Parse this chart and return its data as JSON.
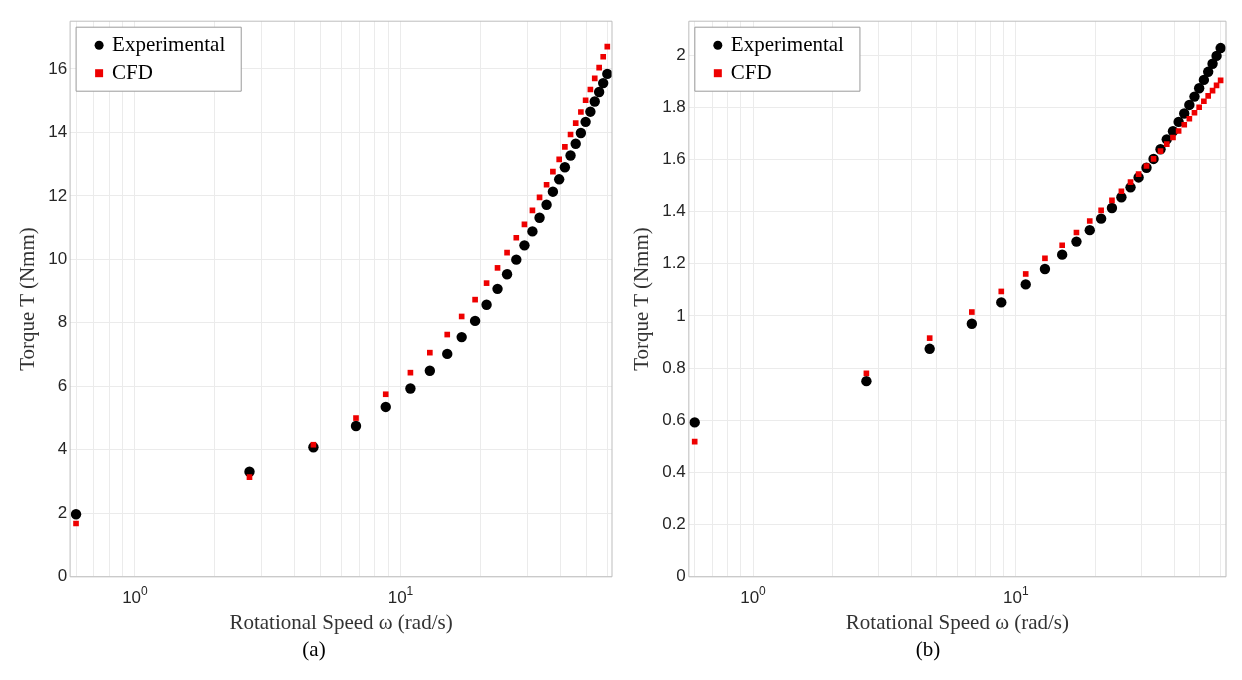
{
  "chart_data": [
    {
      "type": "scatter",
      "xlabel": "Rotational Speed ω (rad/s)",
      "ylabel": "Torque T (Nmm)",
      "log": "x",
      "grid": true,
      "legend": "top left",
      "annotations": [
        "(a)"
      ],
      "x": [
        0.6,
        2.7,
        4.7,
        6.8,
        8.8,
        10.9,
        12.9,
        15,
        17,
        19.1,
        21.1,
        23.2,
        25.2,
        27.3,
        29.3,
        31.4,
        33.4,
        35.5,
        37.5,
        39.6,
        41.6,
        43.7,
        45.7,
        47.8,
        49.8,
        51.9,
        53.9,
        56,
        58,
        60.1
      ],
      "xlim": [
        0.57,
        62.6
      ],
      "xticks": [
        {
          "value": 0.6,
          "label": null
        },
        {
          "value": 0.7,
          "label": null
        },
        {
          "value": 0.8,
          "label": null
        },
        {
          "value": 0.9,
          "label": null
        },
        {
          "value": 1,
          "label": "10$^{0}$"
        },
        {
          "value": 2,
          "label": null
        },
        {
          "value": 3,
          "label": null
        },
        {
          "value": 4,
          "label": null
        },
        {
          "value": 5,
          "label": null
        },
        {
          "value": 6,
          "label": null
        },
        {
          "value": 7,
          "label": null
        },
        {
          "value": 8,
          "label": null
        },
        {
          "value": 9,
          "label": null
        },
        {
          "value": 10,
          "label": "10$^{1}$"
        },
        {
          "value": 20,
          "label": null
        },
        {
          "value": 30,
          "label": null
        },
        {
          "value": 40,
          "label": null
        },
        {
          "value": 50,
          "label": null
        },
        {
          "value": 60,
          "label": null
        }
      ],
      "ylim": [
        0,
        17.5
      ],
      "yticks": [
        0,
        2,
        4,
        6,
        8,
        10,
        12,
        14,
        16
      ],
      "series": [
        {
          "name": "Experimental",
          "color": "#000000",
          "marker": "circle",
          "values": [
            1.97,
            3.31,
            4.08,
            4.75,
            5.35,
            5.93,
            6.49,
            7.02,
            7.55,
            8.06,
            8.57,
            9.07,
            9.53,
            9.99,
            10.44,
            10.88,
            11.31,
            11.72,
            12.13,
            12.52,
            12.9,
            13.27,
            13.64,
            13.98,
            14.33,
            14.65,
            14.97,
            15.27,
            15.55,
            15.84
          ]
        },
        {
          "name": "CFD",
          "color": "#ee0000",
          "marker": "square",
          "values": [
            1.68,
            3.14,
            4.16,
            5.0,
            5.75,
            6.43,
            7.06,
            7.63,
            8.2,
            8.73,
            9.25,
            9.73,
            10.21,
            10.68,
            11.1,
            11.54,
            11.95,
            12.35,
            12.76,
            13.15,
            13.54,
            13.93,
            14.29,
            14.64,
            15.01,
            15.35,
            15.7,
            16.04,
            16.38,
            16.7
          ]
        }
      ]
    },
    {
      "type": "scatter",
      "xlabel": "Rotational Speed ω (rad/s)",
      "ylabel": "Torque T (Nmm)",
      "log": "x",
      "grid": true,
      "legend": "top left",
      "annotations": [
        "(b)"
      ],
      "x": [
        0.6,
        2.7,
        4.7,
        6.8,
        8.8,
        10.9,
        12.9,
        15,
        17,
        19.1,
        21.1,
        23.2,
        25.2,
        27.3,
        29.3,
        31.4,
        33.4,
        35.5,
        37.5,
        39.6,
        41.6,
        43.7,
        45.7,
        47.8,
        49.8,
        51.9,
        53.9,
        56,
        58,
        60.1
      ],
      "xlim": [
        0.57,
        63
      ],
      "xticks": [
        {
          "value": 0.6,
          "label": null
        },
        {
          "value": 0.7,
          "label": null
        },
        {
          "value": 0.8,
          "label": null
        },
        {
          "value": 0.9,
          "label": null
        },
        {
          "value": 1,
          "label": "10$^{0}$"
        },
        {
          "value": 2,
          "label": null
        },
        {
          "value": 3,
          "label": null
        },
        {
          "value": 4,
          "label": null
        },
        {
          "value": 5,
          "label": null
        },
        {
          "value": 6,
          "label": null
        },
        {
          "value": 7,
          "label": null
        },
        {
          "value": 8,
          "label": null
        },
        {
          "value": 9,
          "label": null
        },
        {
          "value": 10,
          "label": "10$^{1}$"
        },
        {
          "value": 20,
          "label": null
        },
        {
          "value": 30,
          "label": null
        },
        {
          "value": 40,
          "label": null
        },
        {
          "value": 50,
          "label": null
        },
        {
          "value": 60,
          "label": null
        }
      ],
      "ylim": [
        0,
        2.13
      ],
      "yticks": [
        0,
        0.2,
        0.4,
        0.6,
        0.8,
        1,
        1.2,
        1.4,
        1.6,
        1.8,
        2
      ],
      "series": [
        {
          "name": "Experimental",
          "color": "#000000",
          "marker": "circle",
          "values": [
            0.592,
            0.75,
            0.874,
            0.97,
            1.052,
            1.121,
            1.18,
            1.235,
            1.285,
            1.329,
            1.373,
            1.414,
            1.455,
            1.493,
            1.531,
            1.568,
            1.602,
            1.639,
            1.677,
            1.708,
            1.744,
            1.776,
            1.809,
            1.841,
            1.873,
            1.905,
            1.936,
            1.967,
            1.997,
            2.027
          ]
        },
        {
          "name": "CFD",
          "color": "#ee0000",
          "marker": "square",
          "values": [
            0.518,
            0.78,
            0.915,
            1.015,
            1.094,
            1.161,
            1.221,
            1.271,
            1.32,
            1.364,
            1.405,
            1.443,
            1.478,
            1.513,
            1.544,
            1.575,
            1.602,
            1.632,
            1.659,
            1.684,
            1.709,
            1.733,
            1.756,
            1.779,
            1.8,
            1.823,
            1.844,
            1.864,
            1.884,
            1.903
          ]
        }
      ]
    }
  ]
}
